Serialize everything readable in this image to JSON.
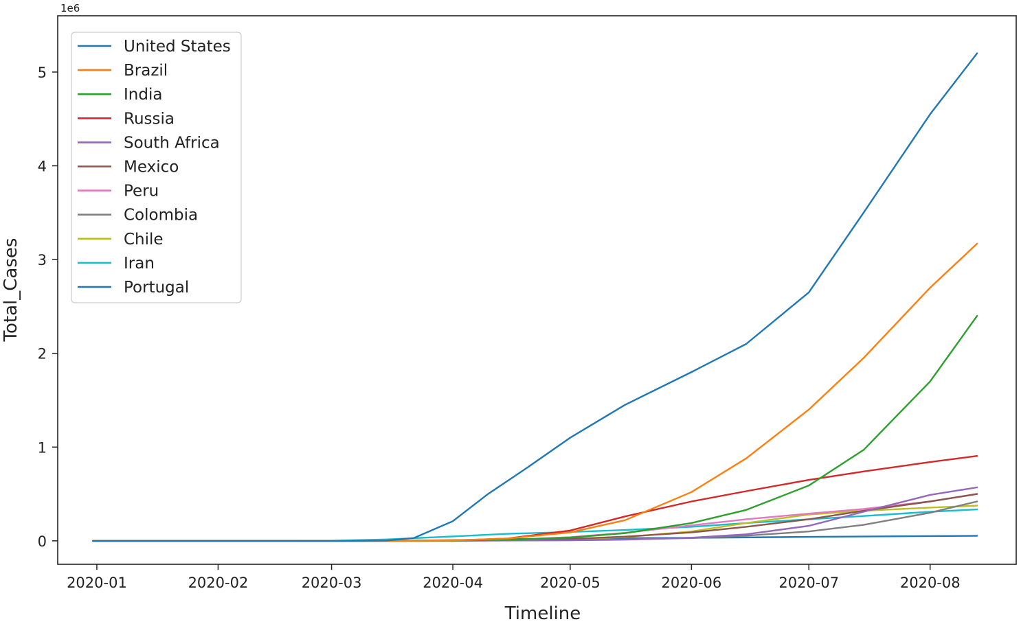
{
  "chart_data": {
    "type": "line",
    "title": "",
    "xlabel": "Timeline",
    "ylabel": "Total_Cases",
    "y_offset_label": "1e6",
    "x_range": [
      "2019-12-22",
      "2020-08-23"
    ],
    "ylim": [
      -250000,
      5600000
    ],
    "x_ticks": [
      "2020-01",
      "2020-02",
      "2020-03",
      "2020-04",
      "2020-05",
      "2020-06",
      "2020-07",
      "2020-08"
    ],
    "x_tick_labels": [
      "2020-01",
      "2020-02",
      "2020-03",
      "2020-04",
      "2020-05",
      "2020-06",
      "2020-07",
      "2020-08"
    ],
    "y_ticks": [
      0,
      1000000,
      2000000,
      3000000,
      4000000,
      5000000
    ],
    "y_tick_labels": [
      "0",
      "1",
      "2",
      "3",
      "4",
      "5"
    ],
    "grid": false,
    "legend_position": "top-left",
    "series": [
      {
        "name": "United States",
        "color": "#1f77b4",
        "x": [
          "2019-12-31",
          "2020-03-01",
          "2020-03-15",
          "2020-03-22",
          "2020-04-01",
          "2020-04-10",
          "2020-04-20",
          "2020-05-01",
          "2020-05-15",
          "2020-06-01",
          "2020-06-15",
          "2020-07-01",
          "2020-07-15",
          "2020-08-01",
          "2020-08-13"
        ],
        "y": [
          0,
          0,
          3000,
          30000,
          210000,
          500000,
          780000,
          1100000,
          1450000,
          1800000,
          2100000,
          2650000,
          3500000,
          4550000,
          5200000
        ]
      },
      {
        "name": "Brazil",
        "color": "#ff7f0e",
        "x": [
          "2019-12-31",
          "2020-03-15",
          "2020-04-01",
          "2020-04-15",
          "2020-05-01",
          "2020-05-15",
          "2020-06-01",
          "2020-06-15",
          "2020-07-01",
          "2020-07-15",
          "2020-08-01",
          "2020-08-13"
        ],
        "y": [
          0,
          0,
          5000,
          25000,
          90000,
          220000,
          520000,
          880000,
          1400000,
          1950000,
          2700000,
          3170000
        ]
      },
      {
        "name": "India",
        "color": "#2ca02c",
        "x": [
          "2019-12-31",
          "2020-03-15",
          "2020-04-01",
          "2020-04-15",
          "2020-05-01",
          "2020-05-15",
          "2020-06-01",
          "2020-06-15",
          "2020-07-01",
          "2020-07-15",
          "2020-08-01",
          "2020-08-13"
        ],
        "y": [
          0,
          0,
          2000,
          12000,
          35000,
          82000,
          190000,
          330000,
          590000,
          970000,
          1700000,
          2400000
        ]
      },
      {
        "name": "Russia",
        "color": "#d62728",
        "x": [
          "2019-12-31",
          "2020-03-15",
          "2020-04-01",
          "2020-04-15",
          "2020-05-01",
          "2020-05-15",
          "2020-06-01",
          "2020-06-15",
          "2020-07-01",
          "2020-07-15",
          "2020-08-01",
          "2020-08-13"
        ],
        "y": [
          0,
          0,
          3000,
          25000,
          110000,
          260000,
          420000,
          530000,
          650000,
          740000,
          840000,
          905000
        ]
      },
      {
        "name": "South Africa",
        "color": "#9467bd",
        "x": [
          "2019-12-31",
          "2020-03-15",
          "2020-04-01",
          "2020-05-01",
          "2020-05-15",
          "2020-06-01",
          "2020-06-15",
          "2020-07-01",
          "2020-07-15",
          "2020-08-01",
          "2020-08-13"
        ],
        "y": [
          0,
          0,
          1400,
          5600,
          12000,
          33000,
          70000,
          160000,
          310000,
          490000,
          570000
        ]
      },
      {
        "name": "Mexico",
        "color": "#8c564b",
        "x": [
          "2019-12-31",
          "2020-03-15",
          "2020-04-01",
          "2020-04-15",
          "2020-05-01",
          "2020-05-15",
          "2020-06-01",
          "2020-06-15",
          "2020-07-01",
          "2020-07-15",
          "2020-08-01",
          "2020-08-13"
        ],
        "y": [
          0,
          0,
          1200,
          6000,
          20000,
          45000,
          90000,
          150000,
          230000,
          320000,
          420000,
          500000
        ]
      },
      {
        "name": "Peru",
        "color": "#e377c2",
        "x": [
          "2019-12-31",
          "2020-03-15",
          "2020-04-01",
          "2020-04-15",
          "2020-05-01",
          "2020-05-15",
          "2020-06-01",
          "2020-06-15",
          "2020-07-01",
          "2020-07-15",
          "2020-08-01",
          "2020-08-13"
        ],
        "y": [
          0,
          0,
          1000,
          10000,
          40000,
          85000,
          165000,
          230000,
          290000,
          340000,
          420000,
          500000
        ]
      },
      {
        "name": "Colombia",
        "color": "#7f7f7f",
        "x": [
          "2019-12-31",
          "2020-03-15",
          "2020-04-01",
          "2020-05-01",
          "2020-05-15",
          "2020-06-01",
          "2020-06-15",
          "2020-07-01",
          "2020-07-15",
          "2020-08-01",
          "2020-08-13"
        ],
        "y": [
          0,
          0,
          1000,
          7000,
          15000,
          30000,
          55000,
          100000,
          170000,
          300000,
          420000
        ]
      },
      {
        "name": "Chile",
        "color": "#bcbd22",
        "x": [
          "2019-12-31",
          "2020-03-15",
          "2020-04-01",
          "2020-04-15",
          "2020-05-01",
          "2020-05-15",
          "2020-06-01",
          "2020-06-15",
          "2020-07-01",
          "2020-07-15",
          "2020-08-01",
          "2020-08-13"
        ],
        "y": [
          0,
          0,
          3000,
          8000,
          17000,
          40000,
          100000,
          190000,
          280000,
          320000,
          355000,
          375000
        ]
      },
      {
        "name": "Iran",
        "color": "#17becf",
        "x": [
          "2019-12-31",
          "2020-02-20",
          "2020-03-01",
          "2020-03-15",
          "2020-04-01",
          "2020-04-15",
          "2020-05-01",
          "2020-05-15",
          "2020-06-01",
          "2020-06-15",
          "2020-07-01",
          "2020-07-15",
          "2020-08-01",
          "2020-08-13"
        ],
        "y": [
          0,
          0,
          1000,
          15000,
          47000,
          75000,
          95000,
          115000,
          150000,
          190000,
          230000,
          265000,
          310000,
          335000
        ]
      },
      {
        "name": "Portugal",
        "color": "#1f77b4",
        "x": [
          "2019-12-31",
          "2020-03-01",
          "2020-03-15",
          "2020-04-01",
          "2020-04-15",
          "2020-05-01",
          "2020-06-01",
          "2020-07-01",
          "2020-08-01",
          "2020-08-13"
        ],
        "y": [
          0,
          0,
          250,
          8000,
          18000,
          25000,
          32000,
          42000,
          51000,
          53000
        ]
      }
    ]
  }
}
